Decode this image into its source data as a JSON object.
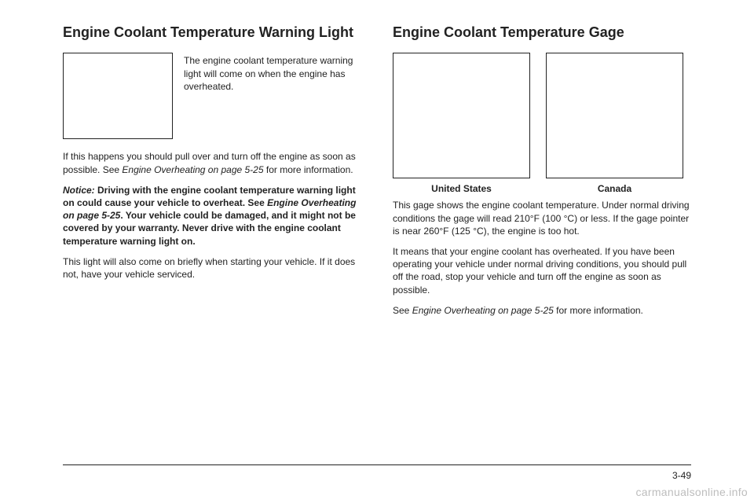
{
  "left": {
    "heading": "Engine Coolant Temperature Warning Light",
    "beside_caption": "The engine coolant temperature warning light will come on when the engine has overheated.",
    "p1_a": "If this happens you should pull over and turn off the engine as soon as possible. See ",
    "p1_ref": "Engine Overheating on page 5-25",
    "p1_b": " for more information.",
    "p2_a": "Notice:",
    "p2_b": "   Driving with the engine coolant temperature warning light on could cause your vehicle to overheat. See ",
    "p2_ref": "Engine Overheating on page 5-25",
    "p2_c": ". Your vehicle could be damaged, and it might not be covered by your warranty. Never drive with the engine coolant temperature warning light on.",
    "p3": "This light will also come on briefly when starting your vehicle. If it does not, have your vehicle serviced."
  },
  "right": {
    "heading": "Engine Coolant Temperature Gage",
    "fig1_label": "United States",
    "fig2_label": "Canada",
    "p1": "This gage shows the engine coolant temperature. Under normal driving conditions the gage will read 210°F (100 °C) or less. If the gage pointer is near 260°F (125 °C), the engine is too hot.",
    "p2": "It means that your engine coolant has overheated. If you have been operating your vehicle under normal driving conditions, you should pull off the road, stop your vehicle and turn off the engine as soon as possible.",
    "p3_a": "See ",
    "p3_ref": "Engine Overheating on page 5-25",
    "p3_b": " for more information."
  },
  "page_number": "3-49",
  "watermark": "carmanualsonline.info",
  "style": {
    "page_bg": "#ffffff",
    "text_color": "#222222",
    "border_color": "#222222",
    "watermark_color": "#bdbdbd",
    "heading_fontsize": 18,
    "body_fontsize": 12
  }
}
